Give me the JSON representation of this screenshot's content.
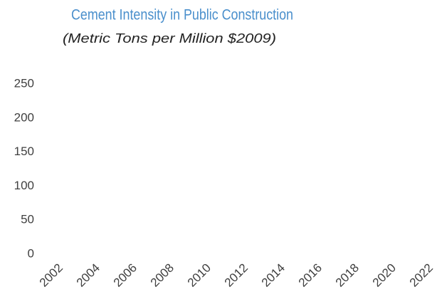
{
  "chart_data": {
    "type": "line",
    "title": "Cement Intensity in Public Construction",
    "subtitle": "(Metric Tons per Million $2009)",
    "xlim": [
      2002,
      2022
    ],
    "xticks": [
      2002,
      2004,
      2006,
      2008,
      2010,
      2012,
      2014,
      2016,
      2018,
      2020,
      2022
    ],
    "ylim": [
      0,
      250
    ],
    "yticks": [
      0,
      50,
      100,
      150,
      200,
      250
    ],
    "grid": false
  }
}
